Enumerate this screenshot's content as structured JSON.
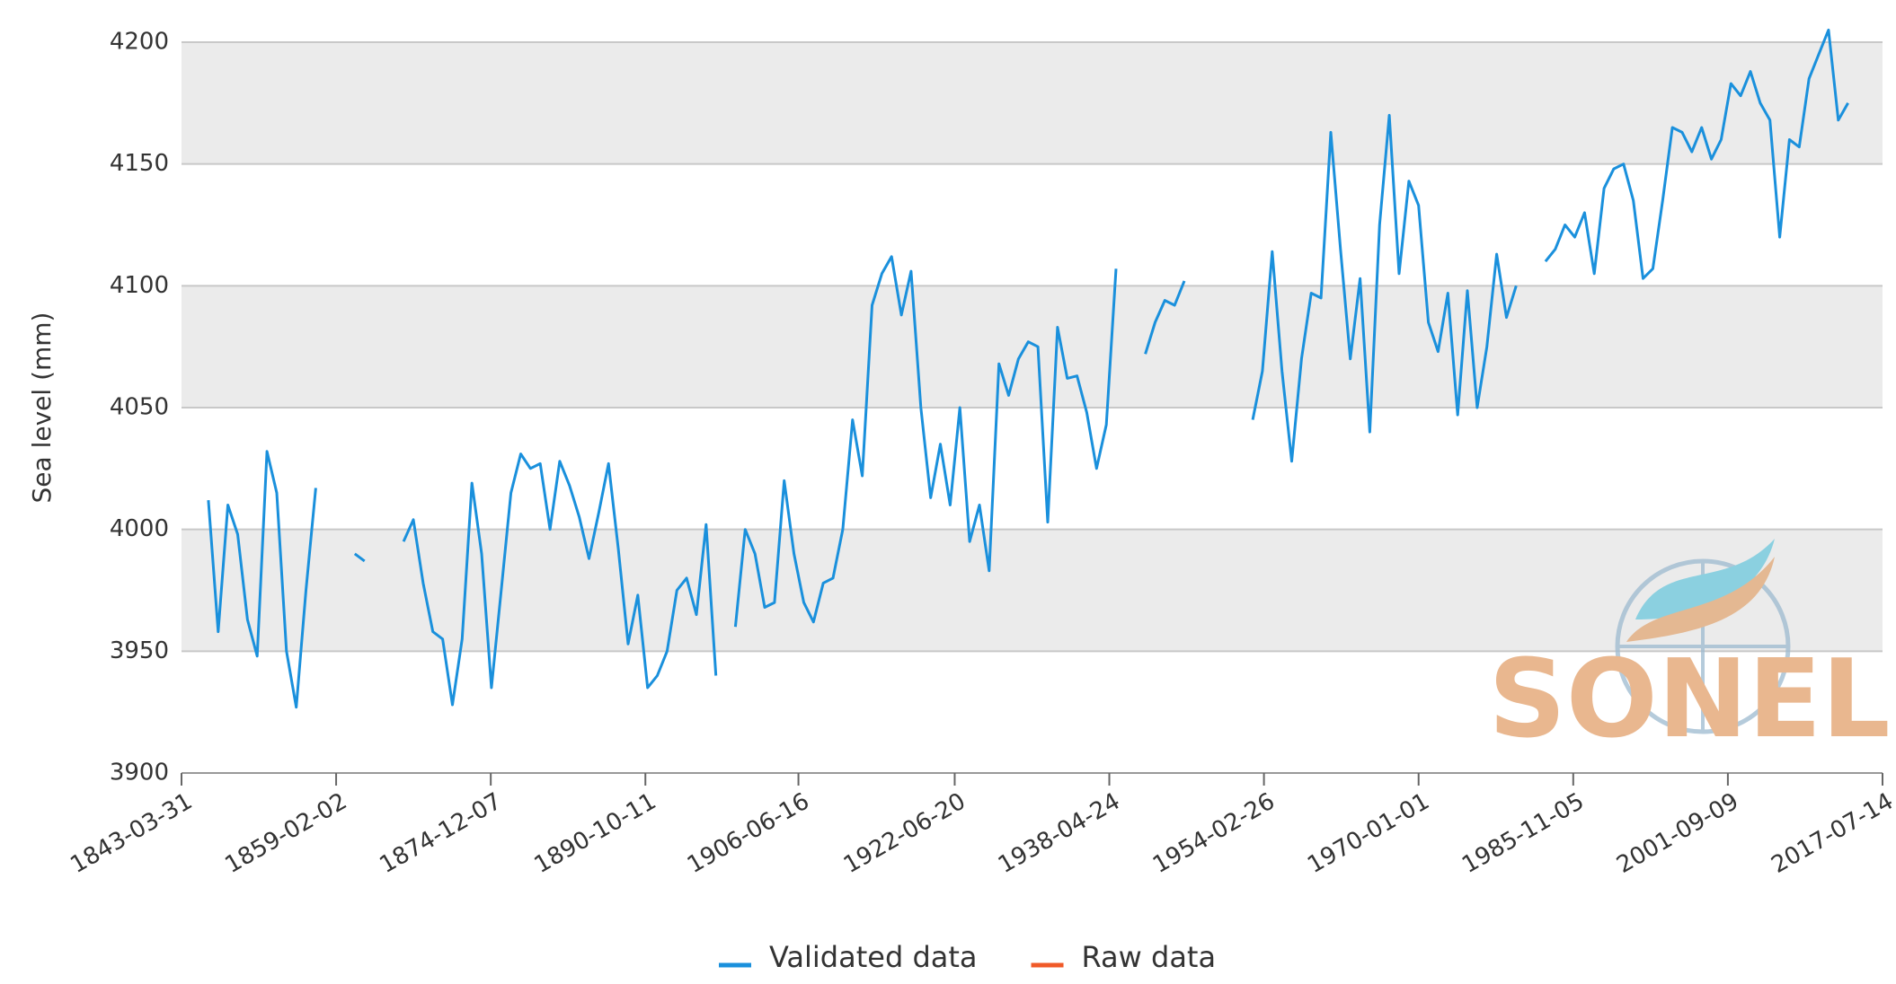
{
  "chart_data": {
    "type": "line",
    "ylabel": "Sea level (mm)",
    "watermark": "SONEL",
    "xlim": [
      1843.245,
      2017.534
    ],
    "xticks": [
      {
        "value": 1843.245,
        "label": "1843-03-31"
      },
      {
        "value": 1859.088,
        "label": "1859-02-02"
      },
      {
        "value": 1874.932,
        "label": "1874-12-07"
      },
      {
        "value": 1890.775,
        "label": "1890-10-11"
      },
      {
        "value": 1906.456,
        "label": "1906-06-16"
      },
      {
        "value": 1922.466,
        "label": "1922-06-20"
      },
      {
        "value": 1938.31,
        "label": "1938-04-24"
      },
      {
        "value": 1954.153,
        "label": "1954-02-26"
      },
      {
        "value": 1970.0,
        "label": "1970-01-01"
      },
      {
        "value": 1985.844,
        "label": "1985-11-05"
      },
      {
        "value": 2001.688,
        "label": "2001-09-09"
      },
      {
        "value": 2017.534,
        "label": "2017-07-14"
      }
    ],
    "ylim": [
      3900,
      4200
    ],
    "yticks": [
      3900,
      3950,
      4000,
      4050,
      4100,
      4150,
      4200
    ],
    "grid": true,
    "legend": "bottom",
    "series": [
      {
        "name": "Validated data",
        "color": "#1a90dc",
        "x": [
          1846,
          1847,
          1848,
          1849,
          1850,
          1851,
          1852,
          1853,
          1854,
          1855,
          1856,
          1857,
          1859,
          1861,
          1862,
          1864,
          1866,
          1867,
          1868,
          1869,
          1870,
          1871,
          1872,
          1873,
          1874,
          1875,
          1876,
          1877,
          1878,
          1879,
          1880,
          1881,
          1882,
          1883,
          1884,
          1885,
          1886,
          1887,
          1888,
          1889,
          1890,
          1891,
          1892,
          1893,
          1894,
          1895,
          1896,
          1897,
          1898,
          1899,
          1900,
          1901,
          1902,
          1903,
          1904,
          1905,
          1906,
          1907,
          1908,
          1909,
          1910,
          1911,
          1912,
          1913,
          1914,
          1915,
          1916,
          1917,
          1918,
          1919,
          1920,
          1921,
          1922,
          1923,
          1924,
          1925,
          1926,
          1927,
          1928,
          1929,
          1930,
          1931,
          1932,
          1933,
          1934,
          1935,
          1936,
          1937,
          1938,
          1939,
          1941,
          1942,
          1943,
          1944,
          1945,
          1946,
          1950,
          1953,
          1954,
          1955,
          1956,
          1957,
          1958,
          1959,
          1960,
          1961,
          1962,
          1963,
          1964,
          1965,
          1966,
          1967,
          1968,
          1969,
          1970,
          1971,
          1972,
          1973,
          1974,
          1975,
          1976,
          1977,
          1978,
          1979,
          1980,
          1982,
          1983,
          1984,
          1985,
          1986,
          1987,
          1988,
          1989,
          1990,
          1991,
          1992,
          1993,
          1994,
          1995,
          1996,
          1997,
          1998,
          1999,
          2000,
          2001,
          2002,
          2003,
          2004,
          2005,
          2006,
          2007,
          2008,
          2009,
          2010,
          2011,
          2012,
          2013,
          2014
        ],
        "values": [
          4012,
          3958,
          4010,
          3998,
          3963,
          3948,
          4032,
          4015,
          3950,
          3927,
          3975,
          4017,
          null,
          3990,
          3987,
          null,
          3995,
          4004,
          3978,
          3958,
          3955,
          3928,
          3955,
          4019,
          3990,
          3935,
          3975,
          4015,
          4031,
          4025,
          4027,
          4000,
          4028,
          4018,
          4005,
          3988,
          4007,
          4027,
          3992,
          3953,
          3973,
          3935,
          3940,
          3950,
          3975,
          3980,
          3965,
          4002,
          3940,
          null,
          3960,
          4000,
          3990,
          3968,
          3970,
          4020,
          3990,
          3970,
          3962,
          3978,
          3980,
          4000,
          4045,
          4022,
          4092,
          4105,
          4112,
          4088,
          4106,
          4050,
          4013,
          4035,
          4010,
          4050,
          3995,
          4010,
          3983,
          4068,
          4055,
          4070,
          4077,
          4075,
          4003,
          4083,
          4062,
          4063,
          4048,
          4025,
          4043,
          4107,
          null,
          4072,
          4085,
          4094,
          4092,
          4102,
          null,
          4045,
          4065,
          4114,
          4065,
          4028,
          4070,
          4097,
          4095,
          4163,
          4115,
          4070,
          4103,
          4040,
          4125,
          4170,
          4105,
          4143,
          4133,
          4085,
          4073,
          4097,
          4047,
          4098,
          4050,
          4075,
          4113,
          4087,
          4100,
          null,
          4110,
          4115,
          4125,
          4120,
          4130,
          4105,
          4140,
          4148,
          4150,
          4135,
          4103,
          4107,
          4135,
          4165,
          4163,
          4155,
          4165,
          4152,
          4160,
          4183,
          4178,
          4188,
          4175,
          4168,
          4120,
          4160,
          4157,
          4185,
          4195,
          4205,
          4168,
          4175
        ]
      },
      {
        "name": "Raw data",
        "color": "#f05a28",
        "x": [],
        "values": []
      }
    ]
  }
}
